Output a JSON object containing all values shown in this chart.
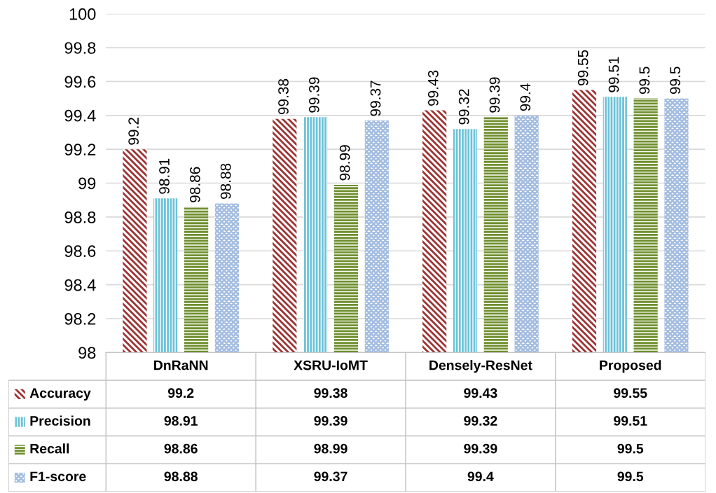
{
  "chart_data": {
    "type": "bar",
    "categories": [
      "DnRaNN",
      "XSRU-IoMT",
      "Densely-ResNet",
      "Proposed"
    ],
    "series": [
      {
        "name": "Accuracy",
        "color": "#9e3333",
        "values": [
          99.2,
          99.38,
          99.43,
          99.55
        ],
        "value_labels": [
          "99.2",
          "99.38",
          "99.43",
          "99.55"
        ]
      },
      {
        "name": "Precision",
        "color": "#6cc3d8",
        "values": [
          98.91,
          99.39,
          99.32,
          99.51
        ],
        "value_labels": [
          "98.91",
          "99.39",
          "99.32",
          "99.51"
        ]
      },
      {
        "name": "Recall",
        "color": "#6f8f2e",
        "values": [
          98.86,
          98.99,
          99.39,
          99.5
        ],
        "value_labels": [
          "98.86",
          "98.99",
          "99.39",
          "99.5"
        ]
      },
      {
        "name": "F1-score",
        "color": "#a4bde0",
        "values": [
          98.88,
          99.37,
          99.4,
          99.5
        ],
        "value_labels": [
          "98.88",
          "99.37",
          "99.4",
          "99.5"
        ]
      }
    ],
    "ylim": [
      98,
      100
    ],
    "yticks": [
      98,
      98.2,
      98.4,
      98.6,
      98.8,
      99,
      99.2,
      99.4,
      99.6,
      99.8,
      100
    ],
    "annotations": [
      "99.2",
      "99.38",
      "99.43",
      "99.55",
      "98.91",
      "99.39",
      "99.32",
      "99.51",
      "98.86",
      "98.99",
      "99.39",
      "99.5",
      "98.88",
      "99.37",
      "99.4",
      "99.5"
    ],
    "grid": "y",
    "legend": "bottom",
    "tick_labels": "y"
  }
}
